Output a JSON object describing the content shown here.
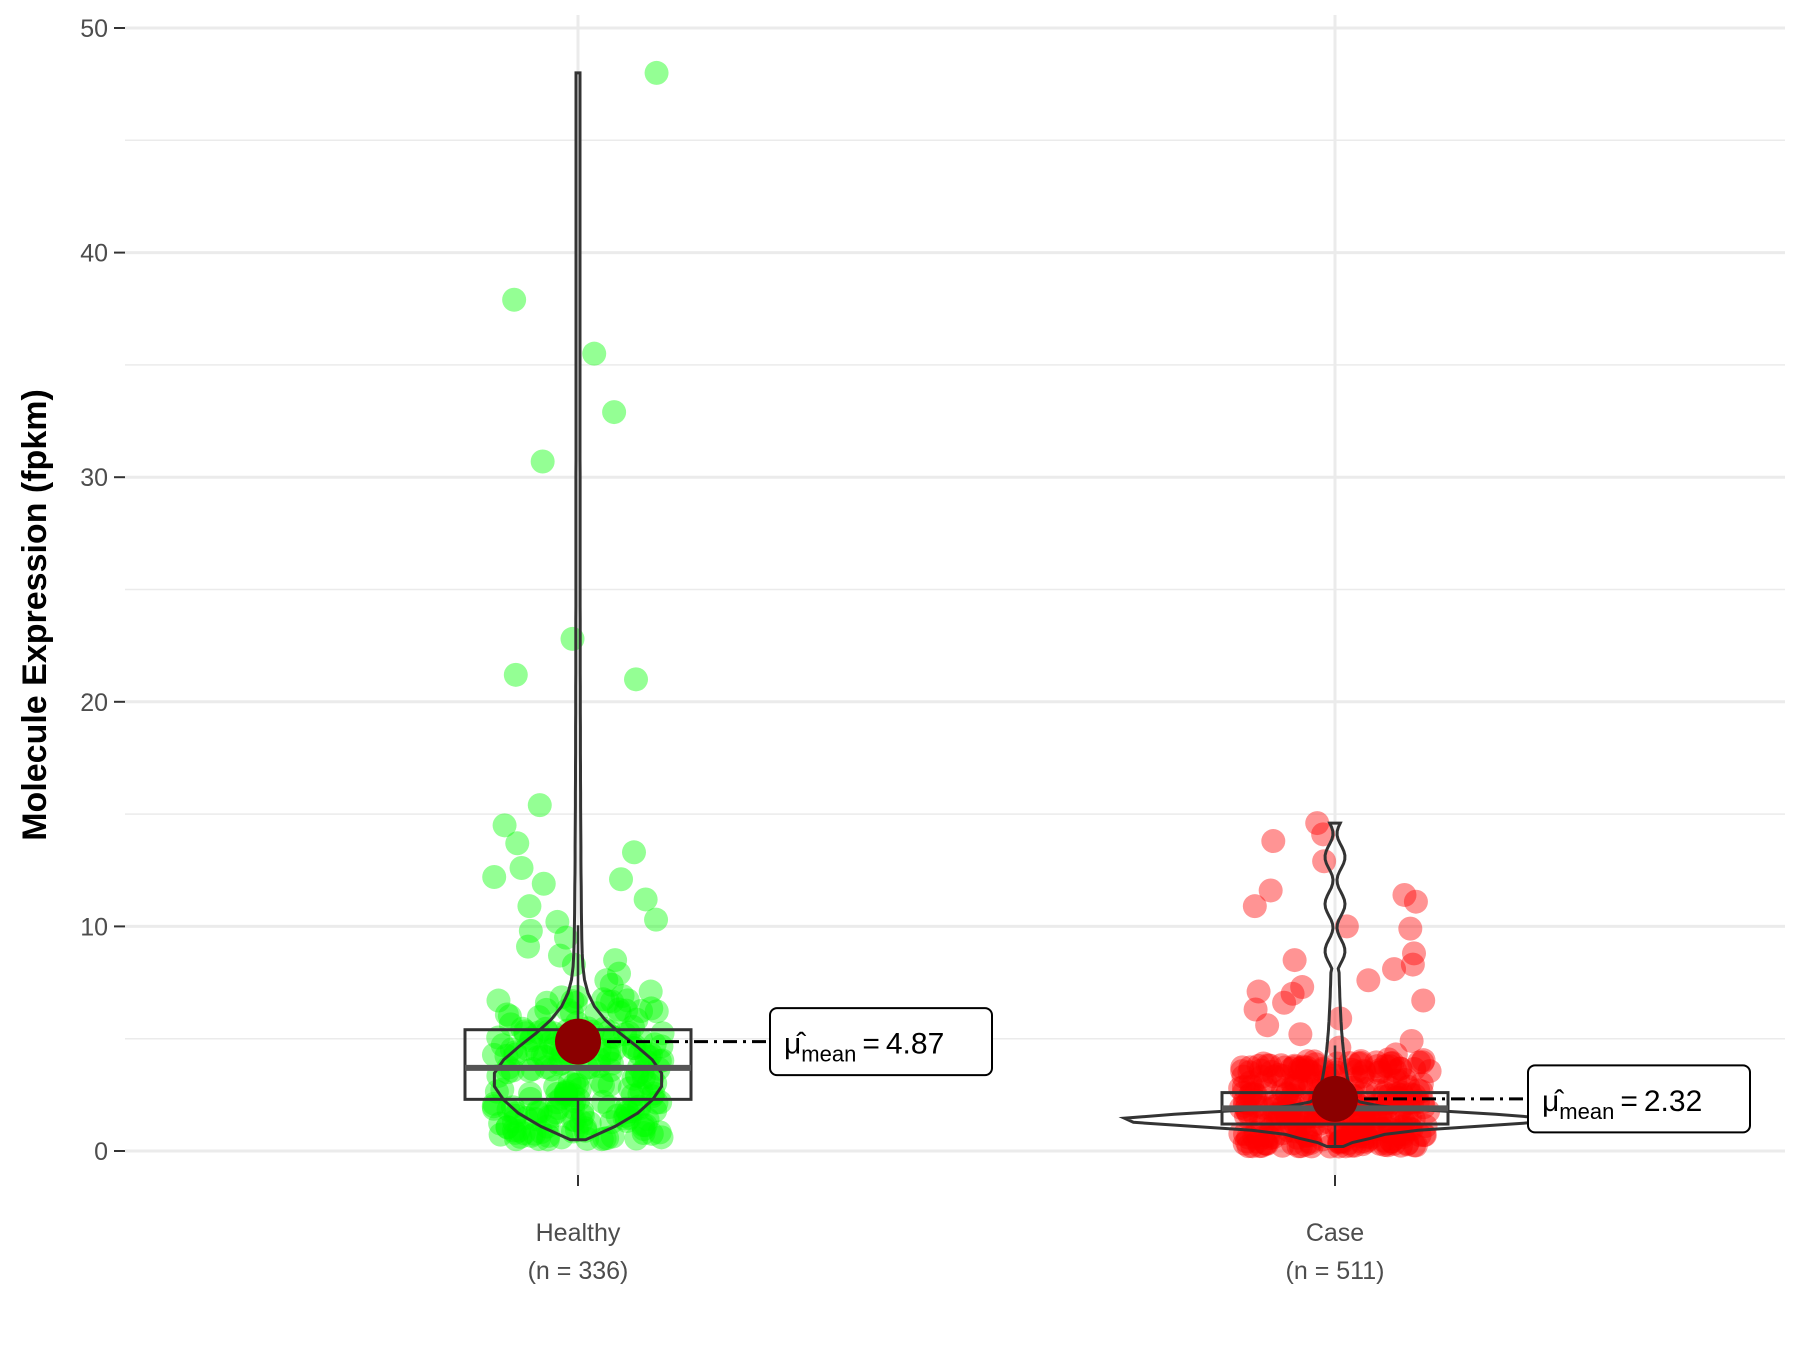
{
  "chart_data": {
    "type": "violin",
    "ylabel": "Molecule Expression (fpkm)",
    "xlabel": "",
    "ylim": [
      -1.5,
      50
    ],
    "yticks": [
      0,
      10,
      20,
      30,
      40,
      50
    ],
    "grid": true,
    "categories": [
      {
        "name": "Healthy",
        "n_label": "(n = 336)"
      },
      {
        "name": "Case",
        "n_label": "(n = 511)"
      }
    ],
    "series": [
      {
        "category": "Healthy",
        "point_color": "#00ff00",
        "max": 48,
        "min": 0.5,
        "box": {
          "q1": 2.3,
          "median": 3.7,
          "q3": 5.4
        },
        "mean": 4.87,
        "mean_label": "4.87",
        "outliers": [
          48,
          37.9,
          35.5,
          32.9,
          30.7,
          22.8,
          21.2,
          21.0,
          15.4,
          14.5,
          13.7,
          13.3,
          12.6,
          12.2,
          12.1,
          11.9,
          11.2,
          10.9,
          10.3,
          10.2,
          9.8,
          9.5,
          9.1,
          8.7,
          8.5,
          8.3,
          7.9,
          7.6,
          7.4,
          7.1,
          6.9,
          6.6,
          6.3,
          6.0
        ]
      },
      {
        "category": "Case",
        "point_color": "#ff0000",
        "max": 14.6,
        "min": 0.2,
        "box": {
          "q1": 1.2,
          "median": 1.9,
          "q3": 2.6
        },
        "mean": 2.32,
        "mean_label": "2.32",
        "outliers": [
          14.6,
          14.1,
          13.8,
          12.9,
          11.6,
          11.4,
          11.1,
          10.9,
          10.0,
          9.9,
          8.8,
          8.5,
          8.3,
          8.1,
          7.6,
          7.3,
          7.1,
          7.0,
          6.7,
          6.6,
          6.3,
          5.9,
          5.6,
          5.2,
          4.9,
          4.6,
          4.3,
          4.0
        ]
      }
    ],
    "mean_symbol": "μ̂",
    "mean_subscript": "mean",
    "mean_eq": "="
  }
}
